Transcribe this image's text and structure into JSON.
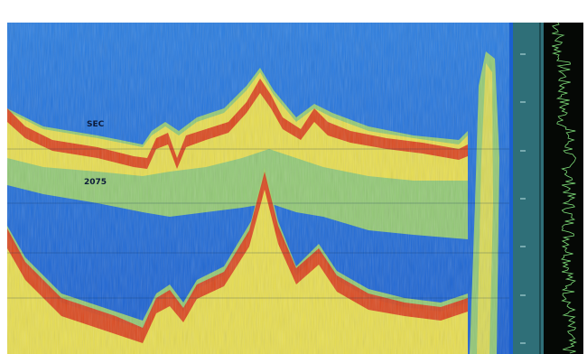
{
  "overlay": {
    "label_top": "SEC",
    "label_bottom": "2075"
  },
  "colors": {
    "water": "#1a5fd0",
    "bottom_strong": "#d9381a",
    "bottom_medium": "#f6e04a",
    "mid": "#9fd36a",
    "scale_bg": "#2f6f78",
    "amplitude_trace": "#7fe07a"
  },
  "depth_scale": {
    "ticks": [
      "",
      "",
      "",
      "",
      "",
      "",
      ""
    ]
  }
}
